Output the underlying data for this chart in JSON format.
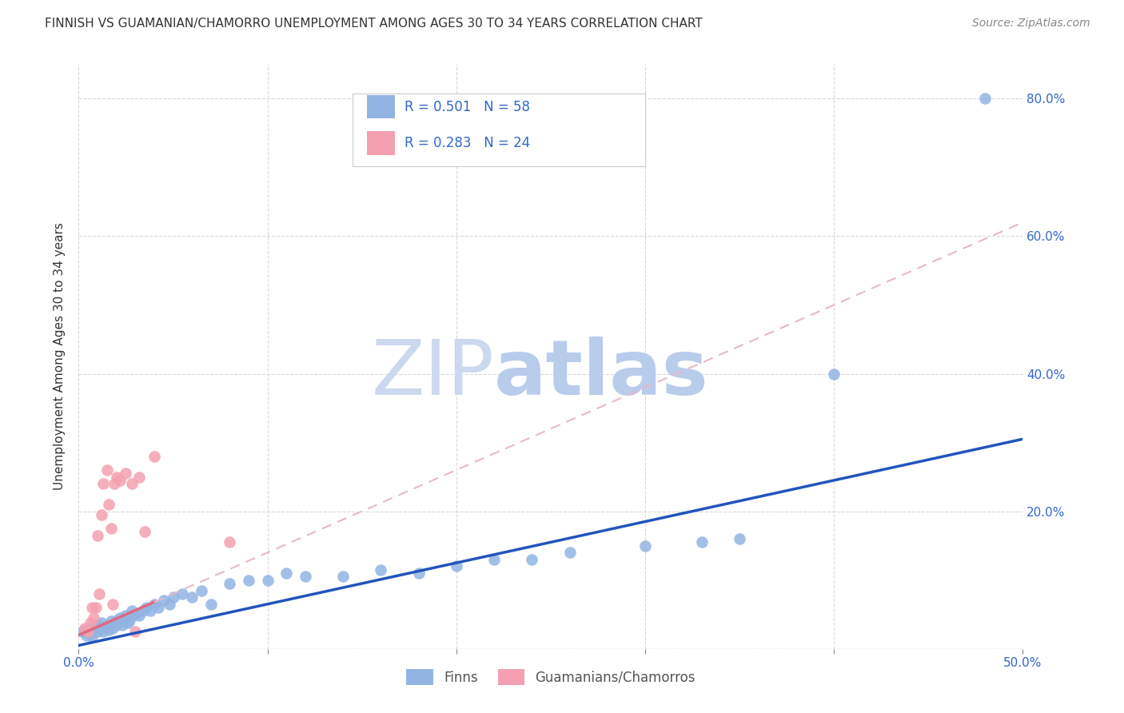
{
  "title": "FINNISH VS GUAMANIAN/CHAMORRO UNEMPLOYMENT AMONG AGES 30 TO 34 YEARS CORRELATION CHART",
  "source": "Source: ZipAtlas.com",
  "ylabel": "Unemployment Among Ages 30 to 34 years",
  "xlim": [
    0.0,
    0.5
  ],
  "ylim": [
    0.0,
    0.85
  ],
  "xticks": [
    0.0,
    0.1,
    0.2,
    0.3,
    0.4,
    0.5
  ],
  "yticks": [
    0.0,
    0.2,
    0.4,
    0.6,
    0.8
  ],
  "xticklabels_show": [
    "0.0%",
    "",
    "",
    "",
    "",
    "50.0%"
  ],
  "yticklabels_right": [
    "",
    "20.0%",
    "40.0%",
    "60.0%",
    "80.0%"
  ],
  "finns_R": "0.501",
  "finns_N": "58",
  "guam_R": "0.283",
  "guam_N": "24",
  "legend_labels": [
    "Finns",
    "Guamanians/Chamorros"
  ],
  "finn_color": "#92b4e3",
  "guam_color": "#f4a0b0",
  "finn_line_color": "#2255bb",
  "guam_line_color": "#e06880",
  "guam_dash_color": "#e8b8c8",
  "watermark_zip_color": "#ccd8f0",
  "watermark_atlas_color": "#b8ccec",
  "background_color": "#ffffff",
  "grid_color": "#d8d8d8",
  "tick_color": "#888888",
  "label_color": "#3366cc",
  "title_color": "#333333",
  "finns_x": [
    0.002,
    0.004,
    0.005,
    0.006,
    0.007,
    0.008,
    0.01,
    0.01,
    0.011,
    0.012,
    0.013,
    0.014,
    0.015,
    0.016,
    0.017,
    0.018,
    0.019,
    0.02,
    0.02,
    0.021,
    0.022,
    0.023,
    0.024,
    0.025,
    0.026,
    0.027,
    0.028,
    0.03,
    0.032,
    0.034,
    0.036,
    0.038,
    0.04,
    0.042,
    0.045,
    0.048,
    0.05,
    0.055,
    0.06,
    0.065,
    0.07,
    0.08,
    0.09,
    0.1,
    0.11,
    0.12,
    0.14,
    0.16,
    0.18,
    0.2,
    0.22,
    0.24,
    0.26,
    0.3,
    0.33,
    0.35,
    0.4,
    0.48
  ],
  "finns_y": [
    0.025,
    0.02,
    0.03,
    0.022,
    0.018,
    0.028,
    0.035,
    0.025,
    0.03,
    0.038,
    0.025,
    0.032,
    0.035,
    0.028,
    0.04,
    0.03,
    0.038,
    0.035,
    0.042,
    0.038,
    0.045,
    0.035,
    0.04,
    0.048,
    0.038,
    0.042,
    0.055,
    0.05,
    0.048,
    0.055,
    0.06,
    0.055,
    0.065,
    0.06,
    0.07,
    0.065,
    0.075,
    0.08,
    0.075,
    0.085,
    0.065,
    0.095,
    0.1,
    0.1,
    0.11,
    0.105,
    0.105,
    0.115,
    0.11,
    0.12,
    0.13,
    0.13,
    0.14,
    0.15,
    0.155,
    0.16,
    0.4,
    0.8
  ],
  "guam_x": [
    0.003,
    0.005,
    0.006,
    0.007,
    0.008,
    0.009,
    0.01,
    0.011,
    0.012,
    0.013,
    0.015,
    0.016,
    0.017,
    0.018,
    0.019,
    0.02,
    0.022,
    0.025,
    0.028,
    0.03,
    0.032,
    0.035,
    0.04,
    0.08
  ],
  "guam_y": [
    0.03,
    0.025,
    0.038,
    0.06,
    0.045,
    0.06,
    0.165,
    0.08,
    0.195,
    0.24,
    0.26,
    0.21,
    0.175,
    0.065,
    0.24,
    0.25,
    0.245,
    0.255,
    0.24,
    0.025,
    0.25,
    0.17,
    0.28,
    0.155
  ]
}
